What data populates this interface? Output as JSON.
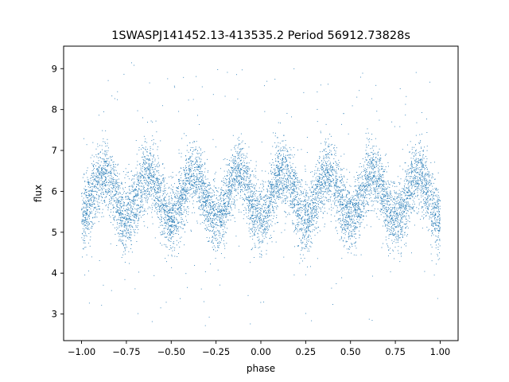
{
  "chart_data": {
    "type": "scatter",
    "title": "1SWASPJ141452.13-413535.2 Period 56912.73828s",
    "xlabel": "phase",
    "ylabel": "flux",
    "xlim": [
      -1.1,
      1.1
    ],
    "ylim": [
      2.35,
      9.55
    ],
    "xticks": [
      -1.0,
      -0.75,
      -0.5,
      -0.25,
      0.0,
      0.25,
      0.5,
      0.75,
      1.0
    ],
    "xtick_labels": [
      "−1.00",
      "−0.75",
      "−0.50",
      "−0.25",
      "0.00",
      "0.25",
      "0.50",
      "0.75",
      "1.00"
    ],
    "yticks": [
      3,
      4,
      5,
      6,
      7,
      8,
      9
    ],
    "ytick_labels": [
      "3",
      "4",
      "5",
      "6",
      "7",
      "8",
      "9"
    ],
    "grid": false,
    "legend": "none",
    "marker_color": "#1f77b4",
    "series_model": {
      "description_of_points": "dense phase-folded light curve, sinusoidal flux variation",
      "mean_flux": 5.9,
      "amplitude": 0.55,
      "cycles_per_unit_phase": 4,
      "peak_phases": [
        -0.875,
        -0.625,
        -0.375,
        -0.125,
        0.125,
        0.375,
        0.625,
        0.875
      ],
      "trough_phases": [
        -1.0,
        -0.75,
        -0.5,
        -0.25,
        0.0,
        0.25,
        0.5,
        0.75,
        1.0
      ],
      "scatter_sigma": 0.42,
      "flux_range": [
        2.7,
        9.2
      ]
    }
  }
}
